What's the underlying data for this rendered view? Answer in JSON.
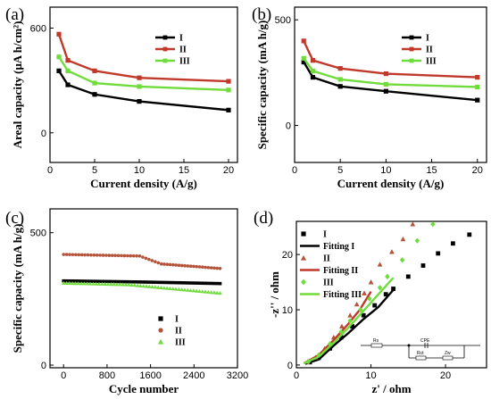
{
  "colors": {
    "I": "#000000",
    "II": "#c0392b",
    "III": "#6fdc3c",
    "II_marker": "#b5533a"
  },
  "chart_data": [
    {
      "panel": "(a)",
      "type": "line",
      "xlabel": "Current density (A/g)",
      "ylabel": "Areal capacity (μA h/cm²)",
      "xlim": [
        0,
        21
      ],
      "ylim": [
        -170,
        720
      ],
      "xticks": [
        0,
        5,
        10,
        15,
        20
      ],
      "yticks": [
        0,
        600
      ],
      "x": [
        1,
        2,
        5,
        10,
        20
      ],
      "series": [
        {
          "name": "I",
          "values": [
            355,
            275,
            220,
            180,
            130
          ]
        },
        {
          "name": "II",
          "values": [
            565,
            415,
            355,
            315,
            295
          ]
        },
        {
          "name": "III",
          "values": [
            435,
            355,
            285,
            265,
            245
          ]
        }
      ]
    },
    {
      "panel": "(b)",
      "type": "line",
      "xlabel": "Current density (A/g)",
      "ylabel": "Specific capacity (mA h/g)",
      "xlim": [
        0,
        21
      ],
      "ylim": [
        -175,
        560
      ],
      "xticks": [
        0,
        5,
        10,
        15,
        20
      ],
      "yticks": [
        0,
        500
      ],
      "x": [
        1,
        2,
        5,
        10,
        20
      ],
      "series": [
        {
          "name": "I",
          "values": [
            300,
            228,
            185,
            162,
            120
          ]
        },
        {
          "name": "II",
          "values": [
            400,
            308,
            270,
            245,
            228
          ]
        },
        {
          "name": "III",
          "values": [
            318,
            258,
            218,
            195,
            182
          ]
        }
      ]
    },
    {
      "panel": "(c)",
      "type": "scatter",
      "xlabel": "Cycle number",
      "ylabel": "Specific capacity (mA h/g)",
      "xlim": [
        -250,
        3200
      ],
      "ylim": [
        -10,
        590
      ],
      "xticks": [
        0,
        800,
        1600,
        2400,
        3200
      ],
      "yticks": [
        0,
        500
      ],
      "series": [
        {
          "name": "I",
          "points": [
            [
              0,
              318
            ],
            [
              1400,
              314
            ],
            [
              2880,
              308
            ]
          ]
        },
        {
          "name": "II",
          "points": [
            [
              0,
              418
            ],
            [
              1400,
              412
            ],
            [
              1800,
              382
            ],
            [
              2880,
              365
            ]
          ]
        },
        {
          "name": "III",
          "points": [
            [
              0,
              310
            ],
            [
              1200,
              304
            ],
            [
              2880,
              272
            ]
          ]
        }
      ]
    },
    {
      "panel": "(d)",
      "type": "scatter",
      "xlabel": "z' / ohm",
      "ylabel": "-z'' / ohm",
      "xlim": [
        0,
        25.5
      ],
      "ylim": [
        -0.5,
        26
      ],
      "xticks": [
        0,
        10,
        20
      ],
      "yticks": [
        0,
        10,
        20
      ],
      "series": [
        {
          "name": "I",
          "points": [
            [
              1.8,
              0.5
            ],
            [
              3,
              1.3
            ],
            [
              4.5,
              3
            ],
            [
              6,
              5
            ],
            [
              7.5,
              7
            ],
            [
              9,
              9
            ],
            [
              10.5,
              10.8
            ],
            [
              12,
              12.8
            ],
            [
              13,
              13.8
            ],
            [
              15,
              16
            ],
            [
              17,
              18
            ],
            [
              19,
              20.2
            ],
            [
              21,
              22
            ],
            [
              23.2,
              23.6
            ]
          ]
        },
        {
          "name": "Fitting I",
          "points": [
            [
              1.2,
              0.2
            ],
            [
              3,
              1
            ],
            [
              5,
              3.5
            ],
            [
              7,
              5.8
            ],
            [
              9,
              8.3
            ],
            [
              11,
              10.5
            ],
            [
              13,
              13.6
            ]
          ]
        },
        {
          "name": "II",
          "points": [
            [
              1.5,
              0.6
            ],
            [
              2.6,
              1.4
            ],
            [
              3.8,
              3
            ],
            [
              5,
              5
            ],
            [
              6.1,
              7
            ],
            [
              7.2,
              9
            ],
            [
              8.1,
              11
            ],
            [
              9.1,
              13
            ],
            [
              10,
              15
            ],
            [
              11.2,
              18.2
            ],
            [
              12.8,
              20.5
            ],
            [
              14.3,
              22.8
            ],
            [
              15.6,
              25.5
            ]
          ]
        },
        {
          "name": "Fitting II",
          "points": [
            [
              1,
              0.3
            ],
            [
              3,
              1.8
            ],
            [
              5,
              4.5
            ],
            [
              7,
              7.5
            ],
            [
              8.5,
              10
            ],
            [
              10,
              13.3
            ]
          ]
        },
        {
          "name": "III",
          "points": [
            [
              1.6,
              0.6
            ],
            [
              3,
              1.8
            ],
            [
              4.5,
              3.8
            ],
            [
              6,
              6
            ],
            [
              7.2,
              8
            ],
            [
              8.6,
              10
            ],
            [
              9.8,
              12
            ],
            [
              11.2,
              14
            ],
            [
              12.2,
              16
            ],
            [
              14.2,
              19
            ],
            [
              16.2,
              22.5
            ],
            [
              18.3,
              25.5
            ]
          ]
        },
        {
          "name": "Fitting III",
          "points": [
            [
              1,
              0.3
            ],
            [
              3,
              1.5
            ],
            [
              5,
              4
            ],
            [
              7,
              6.8
            ],
            [
              9,
              9.8
            ],
            [
              11,
              12.8
            ],
            [
              13,
              15.8
            ]
          ]
        }
      ],
      "circuit_labels": [
        "Rs",
        "CPE",
        "Rct",
        "Zw"
      ]
    }
  ]
}
